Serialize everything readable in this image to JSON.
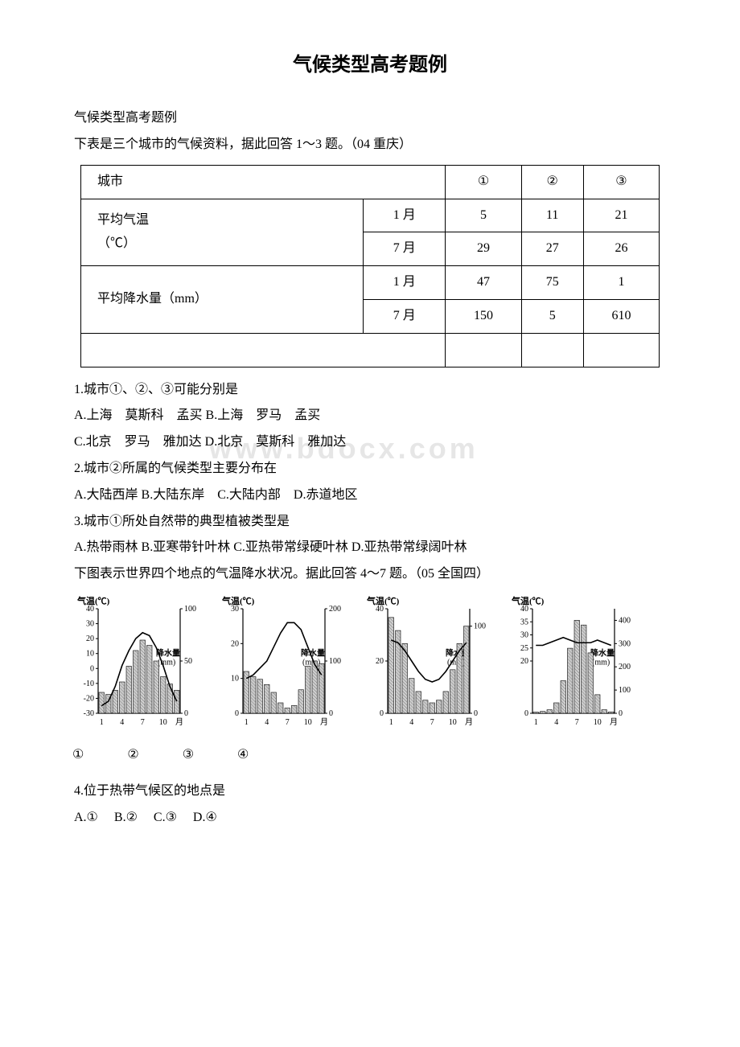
{
  "title": "气候类型高考题例",
  "subtitle": "气候类型高考题例",
  "intro1": "下表是三个城市的气候资料，据此回答 1～3 题。（04 重庆）",
  "table": {
    "header": {
      "city": "城市",
      "c1": "①",
      "c2": "②",
      "c3": "③"
    },
    "temp_label": "平均气温",
    "temp_unit": "（℃）",
    "precip_label": "平均降水量（mm）",
    "jan": "1 月",
    "jul": "7 月",
    "t_jan": [
      "5",
      "11",
      "21"
    ],
    "t_jul": [
      "29",
      "27",
      "26"
    ],
    "p_jan": [
      "47",
      "75",
      "1"
    ],
    "p_jul": [
      "150",
      "5",
      "610"
    ]
  },
  "q1": "1.城市①、②、③可能分别是",
  "q1a": "A.上海　莫斯科　孟买  B.上海　罗马　孟买",
  "q1b": "C.北京　罗马　雅加达  D.北京　莫斯科　雅加达",
  "q2": "2.城市②所属的气候类型主要分布在",
  "q2a": "A.大陆西岸  B.大陆东岸　C.大陆内部　D.赤道地区",
  "q3": "3.城市①所处自然带的典型植被类型是",
  "q3a": "A.热带雨林  B.亚寒带针叶林  C.亚热带常绿硬叶林  D.亚热带常绿阔叶林",
  "intro2": "下图表示世界四个地点的气温降水状况。据此回答 4～7 题。（05 全国四）",
  "chart_cfg": {
    "w": 170,
    "h": 170,
    "axis_color": "#000000",
    "grid_color": "#888888",
    "line_color": "#000000",
    "bar_fill": "#cccccc",
    "bar_hatch": "#444444",
    "bg": "#ffffff",
    "font_family": "SimSun, serif",
    "tick_fontsize": 10,
    "label_fontsize": 11,
    "x_months": [
      1,
      4,
      7,
      10
    ],
    "x_label": "月",
    "temp_title": "气温(℃)",
    "precip_title": "降水量(mm)"
  },
  "charts": [
    {
      "id": 1,
      "temp_ticks": [
        -30,
        -20,
        -10,
        0,
        10,
        20,
        30,
        40
      ],
      "temp_min": -30,
      "temp_max": 40,
      "precip_ticks": [
        0,
        50,
        100
      ],
      "precip_max": 100,
      "temps": [
        -25,
        -22,
        -12,
        2,
        12,
        20,
        24,
        22,
        14,
        2,
        -12,
        -22
      ],
      "precips": [
        20,
        18,
        22,
        30,
        45,
        60,
        70,
        65,
        50,
        35,
        28,
        22
      ]
    },
    {
      "id": 2,
      "temp_ticks": [
        0,
        10,
        20,
        30
      ],
      "temp_min": 0,
      "temp_max": 30,
      "precip_ticks": [
        0,
        100,
        200
      ],
      "precip_max": 200,
      "temps": [
        10,
        11,
        13,
        15,
        19,
        23,
        26,
        26,
        24,
        19,
        14,
        11
      ],
      "precips": [
        80,
        70,
        65,
        55,
        40,
        20,
        10,
        15,
        45,
        90,
        100,
        95
      ]
    },
    {
      "id": 3,
      "temp_ticks": [
        0,
        20,
        40
      ],
      "temp_min": 0,
      "temp_max": 40,
      "precip_ticks": [
        0,
        100
      ],
      "precip_max": 120,
      "temps": [
        28,
        27,
        24,
        20,
        16,
        13,
        12,
        13,
        16,
        20,
        24,
        27
      ],
      "precips": [
        110,
        95,
        80,
        40,
        25,
        15,
        12,
        15,
        25,
        50,
        80,
        100
      ]
    },
    {
      "id": 4,
      "temp_ticks": [
        0,
        20,
        25,
        30,
        35,
        40
      ],
      "temp_min": 0,
      "temp_max": 40,
      "precip_ticks": [
        0,
        100,
        200,
        300,
        400
      ],
      "precip_max": 450,
      "temps": [
        26,
        26,
        27,
        28,
        29,
        28,
        27,
        27,
        27,
        28,
        27,
        26
      ],
      "precips": [
        5,
        8,
        15,
        45,
        140,
        280,
        400,
        380,
        260,
        80,
        15,
        6
      ]
    }
  ],
  "chart_nums": {
    "n1": "①",
    "n2": "②",
    "n3": "③",
    "n4": "④"
  },
  "q4": "4.位于热带气候区的地点是",
  "q4a": "A.①　 B.②　 C.③　 D.④",
  "watermark": "www.bdocx.com"
}
